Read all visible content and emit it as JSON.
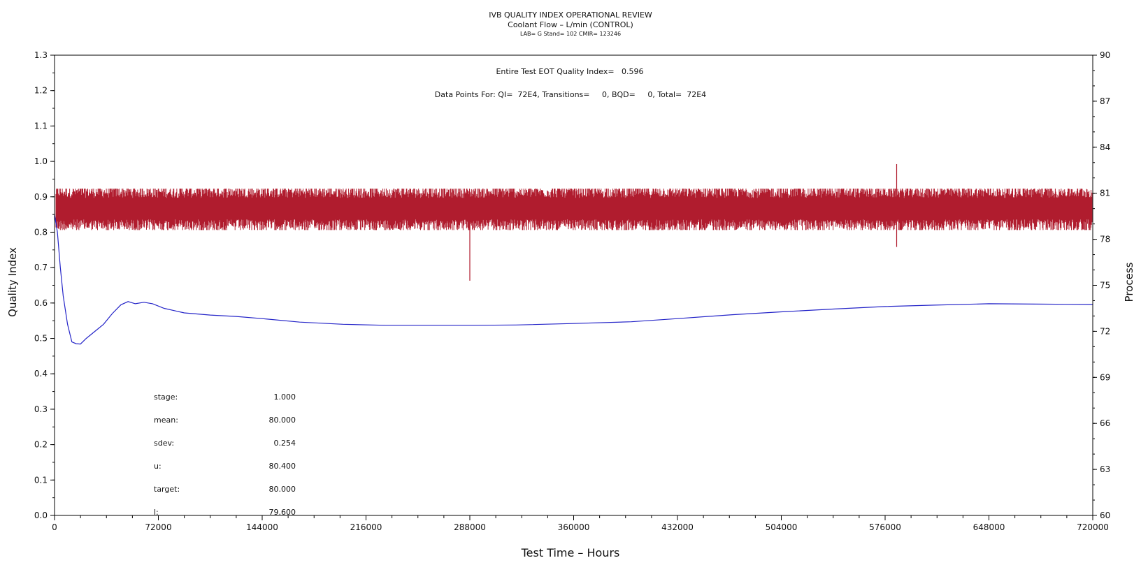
{
  "header": {
    "title": "IVB QUALITY INDEX OPERATIONAL REVIEW",
    "subtitle": "Coolant Flow – L/min (CONTROL)",
    "lab_line": "LAB= G Stand= 102 CMIR= 123246"
  },
  "annotations": {
    "qi_line": "Entire Test EOT Quality Index=   0.596",
    "points_line": "Data Points For: QI=  72E4, Transitions=     0, BQD=     0, Total=  72E4"
  },
  "stats": [
    {
      "label": "stage:",
      "value": "1.000"
    },
    {
      "label": "mean:",
      "value": "80.000"
    },
    {
      "label": "sdev:",
      "value": "0.254"
    },
    {
      "label": "u:",
      "value": "80.400"
    },
    {
      "label": "target:",
      "value": "80.000"
    },
    {
      "label": "l:",
      "value": "79.600"
    }
  ],
  "colors": {
    "process": "#b01c2e",
    "quality_index": "#2424c8",
    "axis": "#000000"
  },
  "chart_data": {
    "type": "line",
    "xlabel": "Test Time – Hours",
    "ylabel": "Quality Index",
    "y2label": "Process",
    "xlim": [
      0,
      720000
    ],
    "ylim": [
      0,
      1.3
    ],
    "y2lim": [
      60,
      90
    ],
    "x_ticks": [
      "0",
      "72000",
      "144000",
      "216000",
      "288000",
      "360000",
      "432000",
      "504000",
      "576000",
      "648000",
      "720000"
    ],
    "y_ticks": [
      "0.0",
      "0.1",
      "0.2",
      "0.3",
      "0.4",
      "0.5",
      "0.6",
      "0.7",
      "0.8",
      "0.9",
      "1.0",
      "1.1",
      "1.2",
      "1.3"
    ],
    "y2_ticks": [
      "60",
      "63",
      "66",
      "69",
      "72",
      "75",
      "78",
      "81",
      "84",
      "87",
      "90"
    ],
    "series": [
      {
        "axis": "right",
        "kind": "noise_band",
        "center": 80.0,
        "band_low": 78.6,
        "band_high": 81.3,
        "spikes": [
          {
            "x": 288000,
            "y": 75.3
          },
          {
            "x": 584000,
            "y": 82.9
          },
          {
            "x": 584000,
            "y": 77.5
          },
          {
            "x": 4000,
            "y": 80.6
          }
        ]
      },
      {
        "axis": "left",
        "kind": "line",
        "points": [
          [
            0,
            0.85
          ],
          [
            2000,
            0.8
          ],
          [
            4000,
            0.7
          ],
          [
            6000,
            0.62
          ],
          [
            9000,
            0.54
          ],
          [
            12000,
            0.49
          ],
          [
            15000,
            0.485
          ],
          [
            18000,
            0.484
          ],
          [
            22000,
            0.5
          ],
          [
            28000,
            0.52
          ],
          [
            34000,
            0.54
          ],
          [
            40000,
            0.57
          ],
          [
            46000,
            0.595
          ],
          [
            51000,
            0.604
          ],
          [
            56000,
            0.598
          ],
          [
            62000,
            0.602
          ],
          [
            68000,
            0.598
          ],
          [
            76000,
            0.585
          ],
          [
            90000,
            0.572
          ],
          [
            108000,
            0.566
          ],
          [
            126000,
            0.562
          ],
          [
            144000,
            0.556
          ],
          [
            170000,
            0.546
          ],
          [
            200000,
            0.54
          ],
          [
            230000,
            0.537
          ],
          [
            260000,
            0.537
          ],
          [
            290000,
            0.537
          ],
          [
            320000,
            0.538
          ],
          [
            360000,
            0.542
          ],
          [
            400000,
            0.547
          ],
          [
            432000,
            0.556
          ],
          [
            470000,
            0.567
          ],
          [
            504000,
            0.575
          ],
          [
            540000,
            0.583
          ],
          [
            576000,
            0.59
          ],
          [
            610000,
            0.594
          ],
          [
            648000,
            0.598
          ],
          [
            680000,
            0.597
          ],
          [
            720000,
            0.596
          ]
        ]
      }
    ]
  }
}
